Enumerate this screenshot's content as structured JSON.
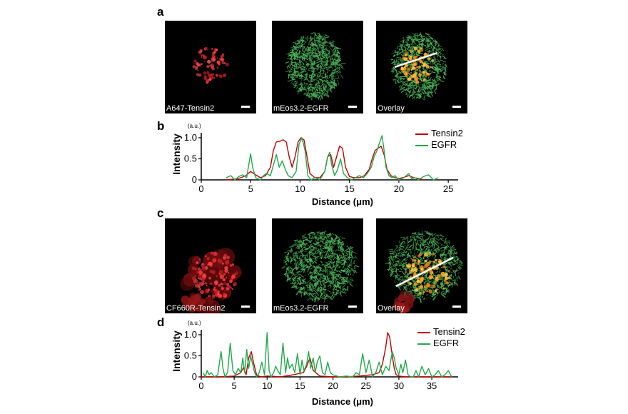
{
  "panels": {
    "a": "a",
    "b": "b",
    "c": "c",
    "d": "d"
  },
  "images_top": [
    {
      "label": "A647-Tensin2",
      "channel": "red"
    },
    {
      "label": "mEos3.2-EGFR",
      "channel": "green"
    },
    {
      "label": "Overlay",
      "channel": "overlay"
    }
  ],
  "images_bottom": [
    {
      "label": "CF660R-Tensin2",
      "channel": "red"
    },
    {
      "label": "mEos3.2-EGFR",
      "channel": "green"
    },
    {
      "label": "Overlay",
      "channel": "overlay"
    }
  ],
  "colors": {
    "tensin2": "#c00000",
    "egfr": "#22a84a"
  },
  "chart_data": [
    {
      "type": "line",
      "panel": "b",
      "xlabel": "Distance (μm)",
      "ylabel": "Intensity",
      "yunit": "(a.u.)",
      "xlim": [
        0,
        26
      ],
      "ylim": [
        0,
        1.05
      ],
      "xticks": [
        0,
        5,
        10,
        15,
        20,
        25
      ],
      "yticks": [
        "0",
        "0.5",
        "1.0"
      ],
      "yticks_values": [
        0,
        0.5,
        1.0
      ],
      "series": [
        {
          "name": "Tensin2",
          "color": "#c00000",
          "x": [
            2.5,
            3.5,
            4.0,
            4.5,
            5.0,
            5.5,
            6.0,
            6.5,
            7.0,
            7.3,
            7.6,
            8.0,
            8.3,
            8.6,
            8.9,
            9.2,
            9.5,
            9.8,
            10.1,
            10.4,
            10.7,
            11.0,
            11.5,
            12.0,
            12.5,
            12.8,
            13.1,
            13.4,
            13.7,
            14.0,
            14.3,
            14.6,
            15.0,
            15.5,
            16.0,
            16.5,
            17.0,
            17.3,
            17.6,
            17.9,
            18.2,
            18.5,
            18.8,
            19.2,
            19.6,
            20.0,
            20.5,
            21.0,
            21.5,
            22.0,
            22.5
          ],
          "y": [
            0.0,
            0.02,
            0.05,
            0.1,
            0.2,
            0.12,
            0.05,
            0.1,
            0.3,
            0.7,
            0.9,
            0.92,
            0.95,
            0.9,
            0.55,
            0.3,
            0.55,
            0.9,
            1.0,
            0.95,
            0.55,
            0.15,
            0.05,
            0.05,
            0.2,
            0.55,
            0.6,
            0.3,
            0.55,
            0.8,
            0.75,
            0.3,
            0.08,
            0.05,
            0.05,
            0.1,
            0.25,
            0.5,
            0.7,
            0.75,
            0.8,
            0.6,
            0.25,
            0.1,
            0.05,
            0.03,
            0.06,
            0.1,
            0.05,
            0.03,
            0.0
          ]
        },
        {
          "name": "EGFR",
          "color": "#22a84a",
          "x": [
            2.5,
            3.0,
            3.4,
            3.8,
            4.2,
            4.6,
            4.8,
            5.0,
            5.2,
            5.5,
            6.0,
            6.3,
            6.6,
            7.0,
            7.3,
            7.6,
            7.9,
            8.2,
            8.5,
            8.8,
            9.2,
            9.6,
            9.9,
            10.2,
            10.5,
            10.8,
            11.1,
            11.5,
            12.0,
            12.5,
            12.8,
            13.0,
            13.2,
            13.5,
            13.8,
            14.1,
            14.4,
            14.8,
            15.2,
            15.6,
            16.0,
            16.4,
            16.8,
            17.2,
            17.5,
            17.8,
            18.0,
            18.3,
            18.5,
            18.7,
            19.0,
            19.3,
            19.6,
            20.0,
            20.5,
            21.0,
            21.3,
            21.6,
            22.0,
            22.5,
            23.0,
            23.5,
            24.0
          ],
          "y": [
            0.05,
            0.1,
            0.0,
            0.08,
            0.12,
            0.05,
            0.35,
            0.62,
            0.3,
            0.05,
            0.0,
            0.1,
            0.15,
            0.1,
            0.35,
            0.6,
            0.3,
            0.45,
            0.25,
            0.1,
            0.05,
            0.2,
            0.85,
            1.0,
            0.7,
            0.1,
            0.0,
            0.05,
            0.0,
            0.2,
            0.55,
            0.65,
            0.35,
            0.1,
            0.25,
            0.5,
            0.15,
            0.05,
            0.0,
            0.05,
            0.1,
            0.05,
            0.15,
            0.3,
            0.55,
            0.7,
            0.85,
            1.05,
            0.7,
            0.3,
            0.1,
            0.05,
            0.1,
            0.0,
            0.05,
            0.15,
            0.02,
            0.05,
            0.0,
            0.08,
            0.12,
            0.0,
            0.05
          ]
        }
      ]
    },
    {
      "type": "line",
      "panel": "d",
      "xlabel": "Distance (μm)",
      "ylabel": "Intensity",
      "yunit": "(a.u.)",
      "xlim": [
        0,
        39
      ],
      "ylim": [
        0,
        1.05
      ],
      "xticks": [
        0,
        5,
        10,
        15,
        20,
        25,
        30,
        35
      ],
      "yticks": [
        "0",
        "0.5",
        "1.0"
      ],
      "yticks_values": [
        0,
        0.5,
        1.0
      ],
      "series": [
        {
          "name": "Tensin2",
          "color": "#c00000",
          "x": [
            0,
            3,
            5,
            6.0,
            6.4,
            6.8,
            7.2,
            7.6,
            8.0,
            8.4,
            9.0,
            10.0,
            12.0,
            14.0,
            15.5,
            16.0,
            16.5,
            17.0,
            18.0,
            20.0,
            22.0,
            24.0,
            26.0,
            27.0,
            27.5,
            28.0,
            28.3,
            28.6,
            29.0,
            29.3,
            29.6,
            30.0,
            31.0,
            33.0,
            36.0,
            38.0
          ],
          "y": [
            0.0,
            0.0,
            0.02,
            0.1,
            0.22,
            0.05,
            0.45,
            0.6,
            0.3,
            0.05,
            0.0,
            0.02,
            0.0,
            0.05,
            0.1,
            0.25,
            0.45,
            0.15,
            0.02,
            0.0,
            0.0,
            0.02,
            0.05,
            0.1,
            0.3,
            0.7,
            1.05,
            0.95,
            0.5,
            0.2,
            0.05,
            0.02,
            0.0,
            0.0,
            0.0,
            0.0
          ]
        },
        {
          "name": "EGFR",
          "color": "#22a84a",
          "x": [
            0.3,
            0.6,
            0.9,
            1.2,
            1.5,
            2.0,
            2.5,
            3.0,
            3.3,
            3.6,
            4.0,
            4.4,
            4.8,
            5.2,
            5.6,
            6.0,
            6.3,
            6.6,
            6.9,
            7.2,
            7.5,
            7.8,
            8.1,
            8.4,
            8.8,
            9.2,
            9.6,
            10.0,
            10.3,
            10.6,
            11.0,
            11.3,
            11.6,
            12.0,
            12.4,
            12.8,
            13.1,
            13.4,
            13.8,
            14.2,
            14.6,
            15.0,
            15.3,
            15.6,
            16.0,
            16.3,
            16.6,
            17.0,
            17.3,
            17.6,
            18.0,
            18.4,
            18.8,
            19.2,
            19.6,
            20.0,
            21.0,
            22.0,
            23.0,
            23.5,
            24.0,
            24.5,
            25.0,
            25.5,
            26.0,
            26.5,
            27.0,
            27.5,
            28.0,
            28.5,
            29.0,
            29.3,
            29.6,
            30.0,
            30.3,
            30.6,
            31.0,
            31.4,
            31.8,
            32.2,
            32.6,
            33.0,
            33.5,
            34.0,
            34.5,
            35.0,
            35.5,
            36.0,
            36.5,
            37.0,
            37.5,
            38.0
          ],
          "y": [
            0.1,
            0.0,
            0.15,
            0.05,
            0.1,
            0.0,
            0.05,
            0.6,
            0.2,
            0.0,
            0.1,
            0.8,
            0.15,
            0.05,
            0.2,
            0.1,
            0.45,
            0.1,
            0.65,
            0.2,
            0.5,
            0.3,
            0.1,
            0.0,
            0.1,
            0.35,
            0.05,
            1.05,
            0.15,
            0.0,
            0.1,
            0.25,
            0.15,
            0.05,
            0.8,
            0.1,
            0.45,
            0.2,
            0.3,
            0.1,
            0.55,
            0.05,
            0.4,
            0.15,
            0.3,
            0.6,
            0.2,
            0.45,
            0.1,
            0.35,
            0.5,
            0.1,
            0.05,
            0.35,
            0.1,
            0.05,
            0.0,
            0.02,
            0.0,
            0.1,
            0.05,
            0.55,
            0.1,
            0.4,
            0.0,
            0.1,
            0.35,
            0.05,
            0.25,
            0.15,
            0.6,
            0.45,
            0.2,
            0.05,
            0.3,
            0.1,
            0.4,
            0.05,
            0.0,
            0.0,
            0.15,
            0.0,
            0.25,
            0.05,
            0.2,
            0.0,
            0.05,
            0.15,
            0.0,
            0.05,
            0.15,
            0.0
          ]
        }
      ]
    }
  ]
}
